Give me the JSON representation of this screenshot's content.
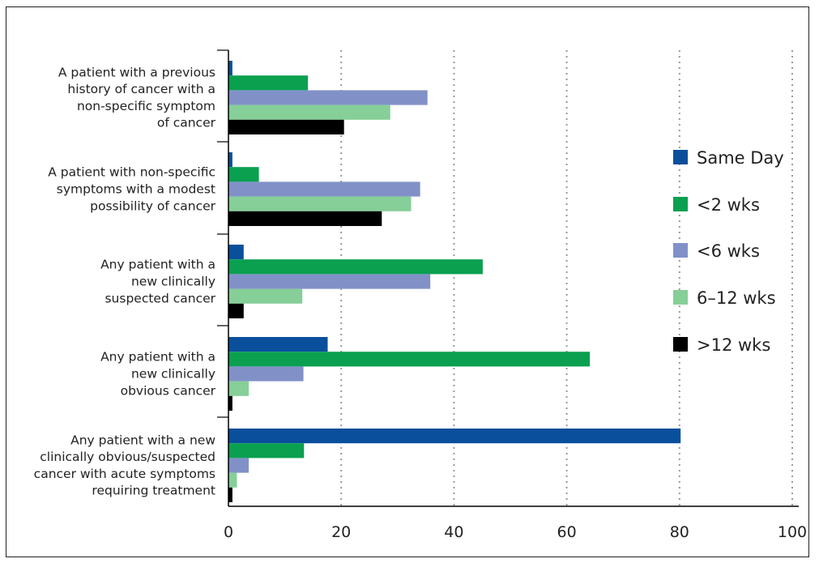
{
  "chart_data": {
    "type": "bar",
    "orientation": "horizontal",
    "categories": [
      "A patient with a previous history of cancer with a non-specific symptom of cancer",
      "A patient with non-specific symptoms with a modest possibility of cancer",
      "Any patient with a new clinically suspected cancer",
      "Any patient with a new clinically obvious cancer",
      "Any patient with a new clinically obvious/suspected cancer with acute symptoms requiring treatment"
    ],
    "category_lines": [
      [
        "A patient with a previous",
        "history of cancer with a",
        "non-specific symptom",
        "of cancer"
      ],
      [
        "A patient with non-specific",
        "symptoms with a modest",
        "possibility of cancer"
      ],
      [
        "Any patient with a",
        "new clinically",
        "suspected cancer"
      ],
      [
        "Any patient with a",
        "new clinically",
        "obvious cancer"
      ],
      [
        "Any patient with a new",
        "clinically obvious/suspected",
        "cancer with acute symptoms",
        "requiring treatment"
      ]
    ],
    "series": [
      {
        "name": "Same Day",
        "color": "#0a4f9c",
        "values": [
          0.7,
          0.7,
          2.7,
          17.6,
          80.2
        ]
      },
      {
        "name": "<2 wks",
        "color": "#0aa050",
        "values": [
          14.1,
          5.4,
          45.1,
          64.1,
          13.4
        ]
      },
      {
        "name": "<6 wks",
        "color": "#8191c8",
        "values": [
          35.3,
          34.0,
          35.8,
          13.3,
          3.6
        ]
      },
      {
        "name": "6–12 wks",
        "color": "#86cf98",
        "values": [
          28.7,
          32.4,
          13.1,
          3.6,
          1.5
        ]
      },
      {
        "name": ">12 wks",
        "color": "#000000",
        "values": [
          20.5,
          27.2,
          2.7,
          0.7,
          0.7
        ]
      }
    ],
    "xlim": [
      0,
      100
    ],
    "xticks": [
      0,
      20,
      40,
      60,
      80,
      100
    ],
    "grid": "vertical dotted",
    "legend": "right",
    "title": "",
    "xlabel": "",
    "ylabel": ""
  }
}
